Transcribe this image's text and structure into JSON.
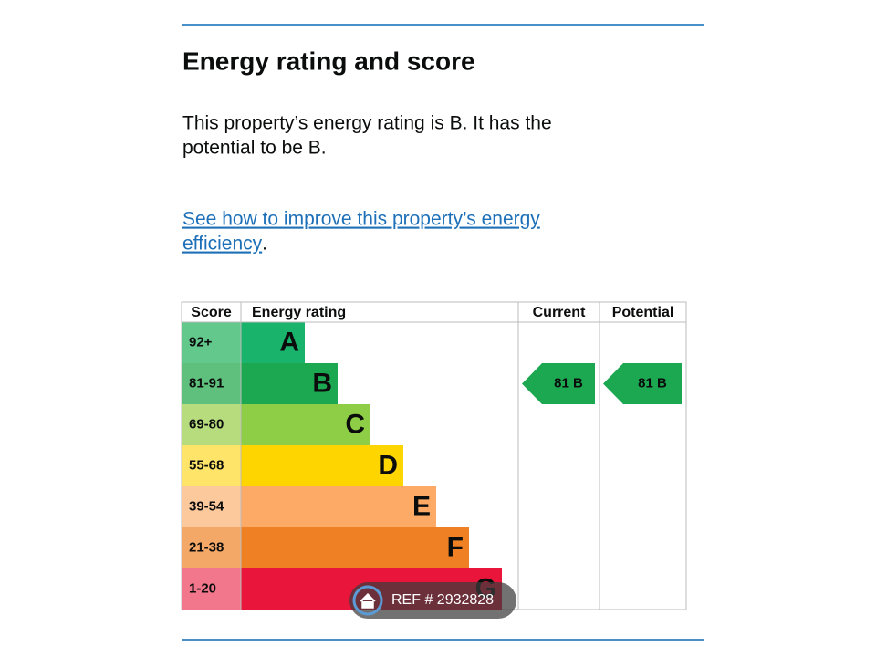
{
  "heading": "Energy rating and score",
  "summary": [
    "This property’s energy rating is B. It has the",
    "potential to be B."
  ],
  "link": [
    "See how to improve this property’s energy",
    "efficiency"
  ],
  "link_suffix": ".",
  "table": {
    "headers": [
      "Score",
      "Energy rating",
      "Current",
      "Potential"
    ],
    "bands": [
      {
        "score": "92+",
        "letter": "A",
        "color": "#19b36b",
        "light": "#63c88c"
      },
      {
        "score": "81-91",
        "letter": "B",
        "color": "#1ba850",
        "light": "#5fbf7c"
      },
      {
        "score": "69-80",
        "letter": "C",
        "color": "#8dce46",
        "light": "#b6dc7e"
      },
      {
        "score": "55-68",
        "letter": "D",
        "color": "#ffd500",
        "light": "#ffe46a"
      },
      {
        "score": "39-54",
        "letter": "E",
        "color": "#fcaa65",
        "light": "#fcc99c"
      },
      {
        "score": "21-38",
        "letter": "F",
        "color": "#ef8023",
        "light": "#f4a868"
      },
      {
        "score": "1-20",
        "letter": "G",
        "color": "#e9153b",
        "light": "#f2778c"
      }
    ],
    "current": {
      "label": "81 B",
      "band": 1
    },
    "potential": {
      "label": "81 B",
      "band": 1
    }
  },
  "watermark": "REF # 2932828"
}
